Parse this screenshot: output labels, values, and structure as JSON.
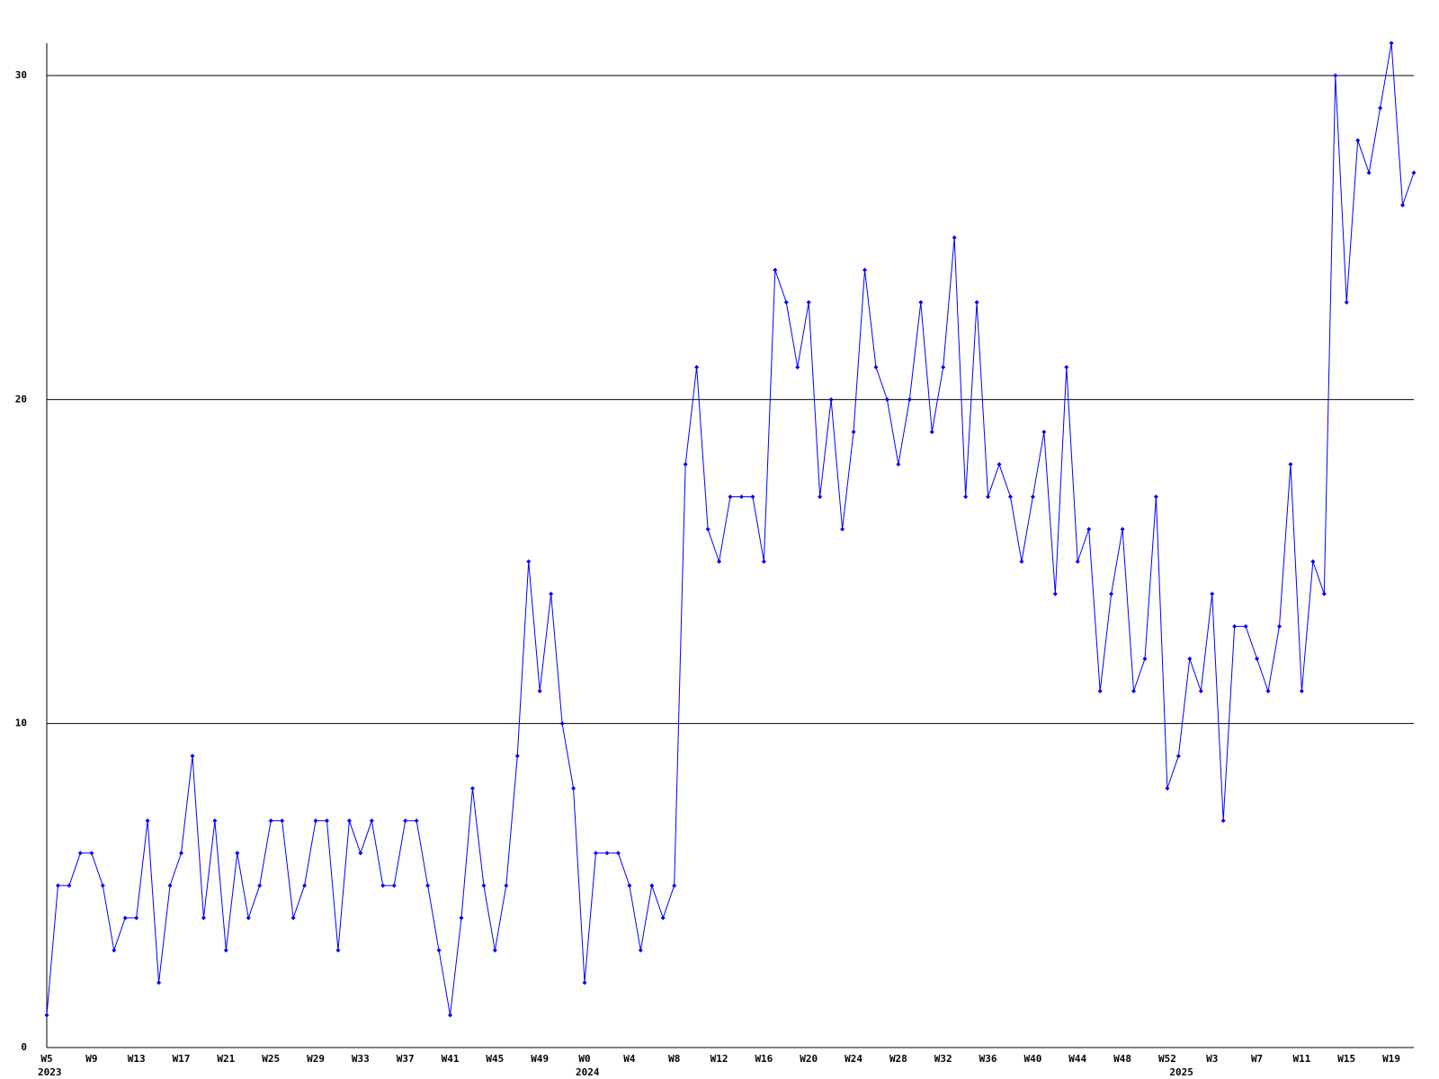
{
  "chart_data": {
    "type": "line",
    "categories": [
      "W5",
      null,
      null,
      null,
      "W9",
      null,
      null,
      null,
      "W13",
      null,
      null,
      null,
      "W17",
      null,
      null,
      null,
      "W21",
      null,
      null,
      null,
      "W25",
      null,
      null,
      null,
      "W29",
      null,
      null,
      null,
      "W33",
      null,
      null,
      null,
      "W37",
      null,
      null,
      null,
      "W41",
      null,
      null,
      null,
      "W45",
      null,
      null,
      null,
      "W49",
      null,
      null,
      null,
      "W0",
      null,
      null,
      null,
      "W4",
      null,
      null,
      null,
      "W8",
      null,
      null,
      null,
      "W12",
      null,
      null,
      null,
      "W16",
      null,
      null,
      null,
      "W20",
      null,
      null,
      null,
      "W24",
      null,
      null,
      null,
      "W28",
      null,
      null,
      null,
      "W32",
      null,
      null,
      null,
      "W36",
      null,
      null,
      null,
      "W40",
      null,
      null,
      null,
      "W44",
      null,
      null,
      null,
      "W48",
      null,
      null,
      null,
      "W52",
      null,
      null,
      null,
      "W3",
      null,
      null,
      null,
      "W7",
      null,
      null,
      null,
      "W11",
      null,
      null,
      null,
      "W15",
      null,
      null,
      null,
      "W19",
      null,
      null
    ],
    "year_labels": [
      "2023",
      null,
      null,
      null,
      null,
      null,
      null,
      null,
      null,
      null,
      null,
      null,
      null,
      null,
      null,
      null,
      null,
      null,
      null,
      null,
      null,
      null,
      null,
      null,
      null,
      null,
      null,
      null,
      null,
      null,
      null,
      null,
      null,
      null,
      null,
      null,
      null,
      null,
      null,
      null,
      null,
      null,
      null,
      null,
      null,
      null,
      null,
      null,
      "2024",
      null,
      null,
      null,
      null,
      null,
      null,
      null,
      null,
      null,
      null,
      null,
      null,
      null,
      null,
      null,
      null,
      null,
      null,
      null,
      null,
      null,
      null,
      null,
      null,
      null,
      null,
      null,
      null,
      null,
      null,
      null,
      null,
      null,
      null,
      null,
      null,
      null,
      null,
      null,
      null,
      null,
      null,
      null,
      null,
      null,
      null,
      null,
      null,
      null,
      null,
      null,
      null,
      "2025",
      null,
      null,
      null,
      null,
      null,
      null,
      null,
      null,
      null,
      null,
      null,
      null,
      null,
      null,
      null,
      null,
      null,
      null,
      null,
      null,
      null
    ],
    "series": [
      {
        "color": "#0000ff",
        "values": [
          1,
          5,
          5,
          6,
          6,
          5,
          3,
          4,
          4,
          7,
          2,
          5,
          6,
          9,
          4,
          7,
          3,
          6,
          4,
          5,
          7,
          7,
          4,
          5,
          7,
          7,
          3,
          7,
          6,
          7,
          5,
          5,
          7,
          7,
          5,
          3,
          1,
          4,
          8,
          5,
          3,
          5,
          9,
          15,
          11,
          14,
          10,
          8,
          2,
          6,
          6,
          6,
          5,
          3,
          5,
          4,
          5,
          18,
          21,
          16,
          15,
          17,
          17,
          17,
          15,
          24,
          23,
          21,
          23,
          17,
          20,
          16,
          19,
          24,
          21,
          20,
          18,
          20,
          23,
          19,
          21,
          25,
          17,
          23,
          17,
          18,
          17,
          15,
          17,
          19,
          14,
          21,
          15,
          16,
          11,
          14,
          16,
          11,
          12,
          17,
          8,
          9,
          12,
          11,
          14,
          7,
          13,
          13,
          12,
          11,
          13,
          18,
          11,
          15,
          14,
          30,
          23,
          28,
          27,
          29,
          31,
          26,
          27
        ]
      }
    ],
    "ylim": [
      0,
      31
    ],
    "yticks": [
      0,
      10,
      20,
      30
    ],
    "grid": true
  }
}
